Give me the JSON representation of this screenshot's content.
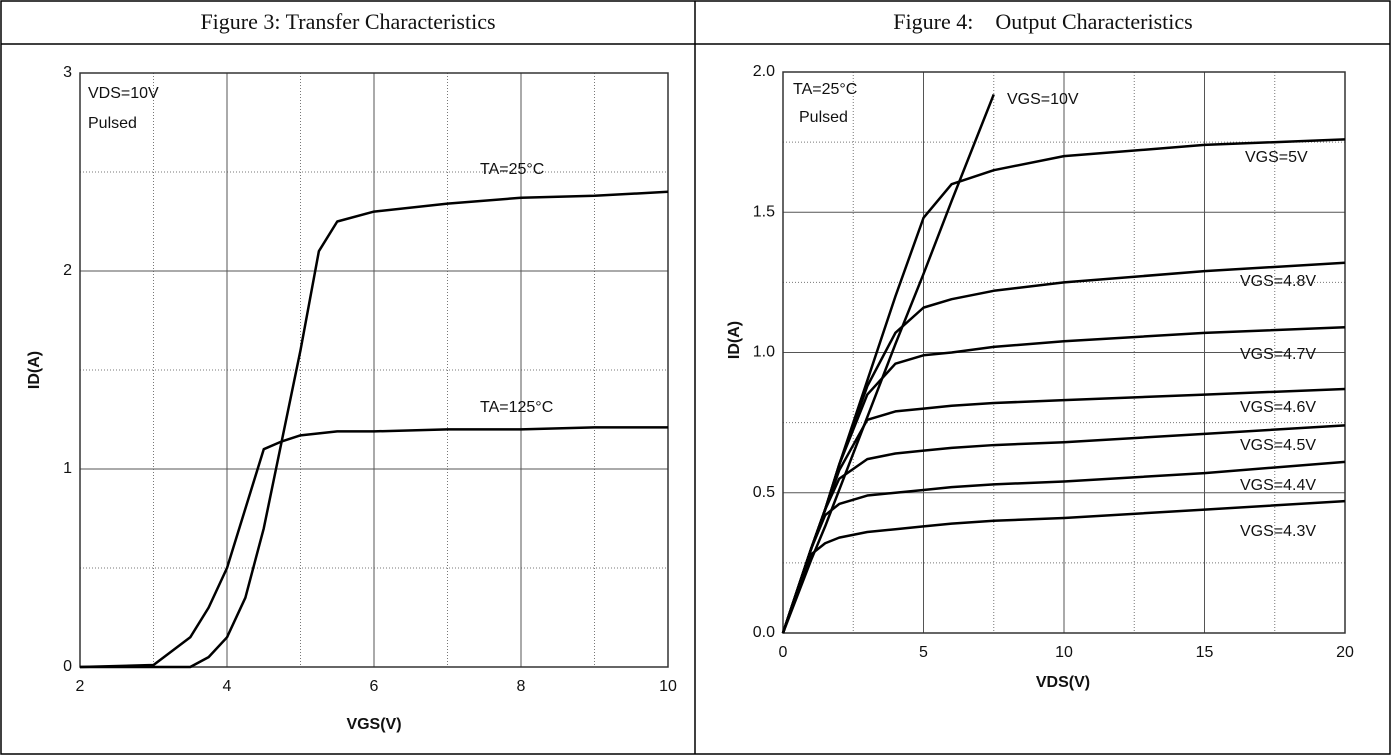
{
  "chart_data": [
    {
      "type": "line",
      "title": "Figure 3: Transfer Characteristics",
      "x_label": "VGS(V)",
      "y_label": "ID(A)",
      "annotations": [
        "VDS=10V",
        "Pulsed"
      ],
      "x": [
        2,
        3,
        3.5,
        3.75,
        4,
        4.25,
        4.5,
        4.75,
        5,
        5.25,
        5.5,
        6,
        7,
        8,
        9,
        10
      ],
      "series": [
        {
          "name": "TA=25°C",
          "color": "#000000",
          "values": [
            0,
            0,
            0,
            0.05,
            0.15,
            0.35,
            0.7,
            1.15,
            1.6,
            2.1,
            2.25,
            2.3,
            2.34,
            2.37,
            2.38,
            2.4
          ]
        },
        {
          "name": "TA=125°C",
          "color": "#000000",
          "values": [
            0,
            0.01,
            0.15,
            0.3,
            0.5,
            0.8,
            1.1,
            1.14,
            1.17,
            1.18,
            1.19,
            1.19,
            1.2,
            1.2,
            1.21,
            1.21
          ]
        }
      ],
      "xlim": [
        2,
        10
      ],
      "ylim": [
        0,
        3
      ],
      "xticks": [
        2,
        4,
        6,
        8,
        10
      ],
      "yticks": [
        0,
        1,
        2,
        3
      ],
      "grid": true,
      "minor_grid": true
    },
    {
      "type": "line",
      "title": "Figure 4:    Output Characteristics",
      "x_label": "VDS(V)",
      "y_label": "ID(A)",
      "annotations": [
        "TA=25°C",
        "Pulsed"
      ],
      "x": [
        0,
        0.5,
        1,
        1.5,
        2,
        3,
        4,
        5,
        6,
        7.5,
        10,
        15,
        20
      ],
      "series": [
        {
          "name": "VGS=10V",
          "color": "#000000",
          "values": [
            0,
            0.13,
            0.26,
            0.38,
            0.51,
            0.77,
            1.03,
            1.28,
            1.54,
            1.92,
            null,
            null,
            null
          ]
        },
        {
          "name": "VGS=5V",
          "color": "#000000",
          "values": [
            0,
            0.15,
            0.3,
            0.44,
            0.6,
            0.9,
            1.2,
            1.48,
            1.6,
            1.65,
            1.7,
            1.74,
            1.76
          ]
        },
        {
          "name": "VGS=4.8V",
          "color": "#000000",
          "values": [
            0,
            0.15,
            0.3,
            0.44,
            0.6,
            0.88,
            1.07,
            1.16,
            1.19,
            1.22,
            1.25,
            1.29,
            1.32
          ]
        },
        {
          "name": "VGS=4.7V",
          "color": "#000000",
          "values": [
            0,
            0.15,
            0.3,
            0.44,
            0.6,
            0.85,
            0.96,
            0.99,
            1.0,
            1.02,
            1.04,
            1.07,
            1.09
          ]
        },
        {
          "name": "VGS=4.6V",
          "color": "#000000",
          "values": [
            0,
            0.15,
            0.3,
            0.44,
            0.58,
            0.76,
            0.79,
            0.8,
            0.81,
            0.82,
            0.83,
            0.85,
            0.87
          ]
        },
        {
          "name": "VGS=4.5V",
          "color": "#000000",
          "values": [
            0,
            0.15,
            0.3,
            0.44,
            0.55,
            0.62,
            0.64,
            0.65,
            0.66,
            0.67,
            0.68,
            0.71,
            0.74
          ]
        },
        {
          "name": "VGS=4.4V",
          "color": "#000000",
          "values": [
            0,
            0.15,
            0.3,
            0.42,
            0.46,
            0.49,
            0.5,
            0.51,
            0.52,
            0.53,
            0.54,
            0.57,
            0.61
          ]
        },
        {
          "name": "VGS=4.3V",
          "color": "#000000",
          "values": [
            0,
            0.15,
            0.28,
            0.32,
            0.34,
            0.36,
            0.37,
            0.38,
            0.39,
            0.4,
            0.41,
            0.44,
            0.47
          ]
        }
      ],
      "xlim": [
        0,
        20
      ],
      "ylim": [
        0,
        2
      ],
      "xticks": [
        0,
        5,
        10,
        15,
        20
      ],
      "yticks": [
        {
          "value": 0,
          "label": "0.0"
        },
        {
          "value": 0.5,
          "label": "0.5"
        },
        {
          "value": 1,
          "label": "1.0"
        },
        {
          "value": 1.5,
          "label": "1.5"
        },
        {
          "value": 2,
          "label": "2.0"
        }
      ],
      "grid": true,
      "minor_grid": true
    }
  ]
}
